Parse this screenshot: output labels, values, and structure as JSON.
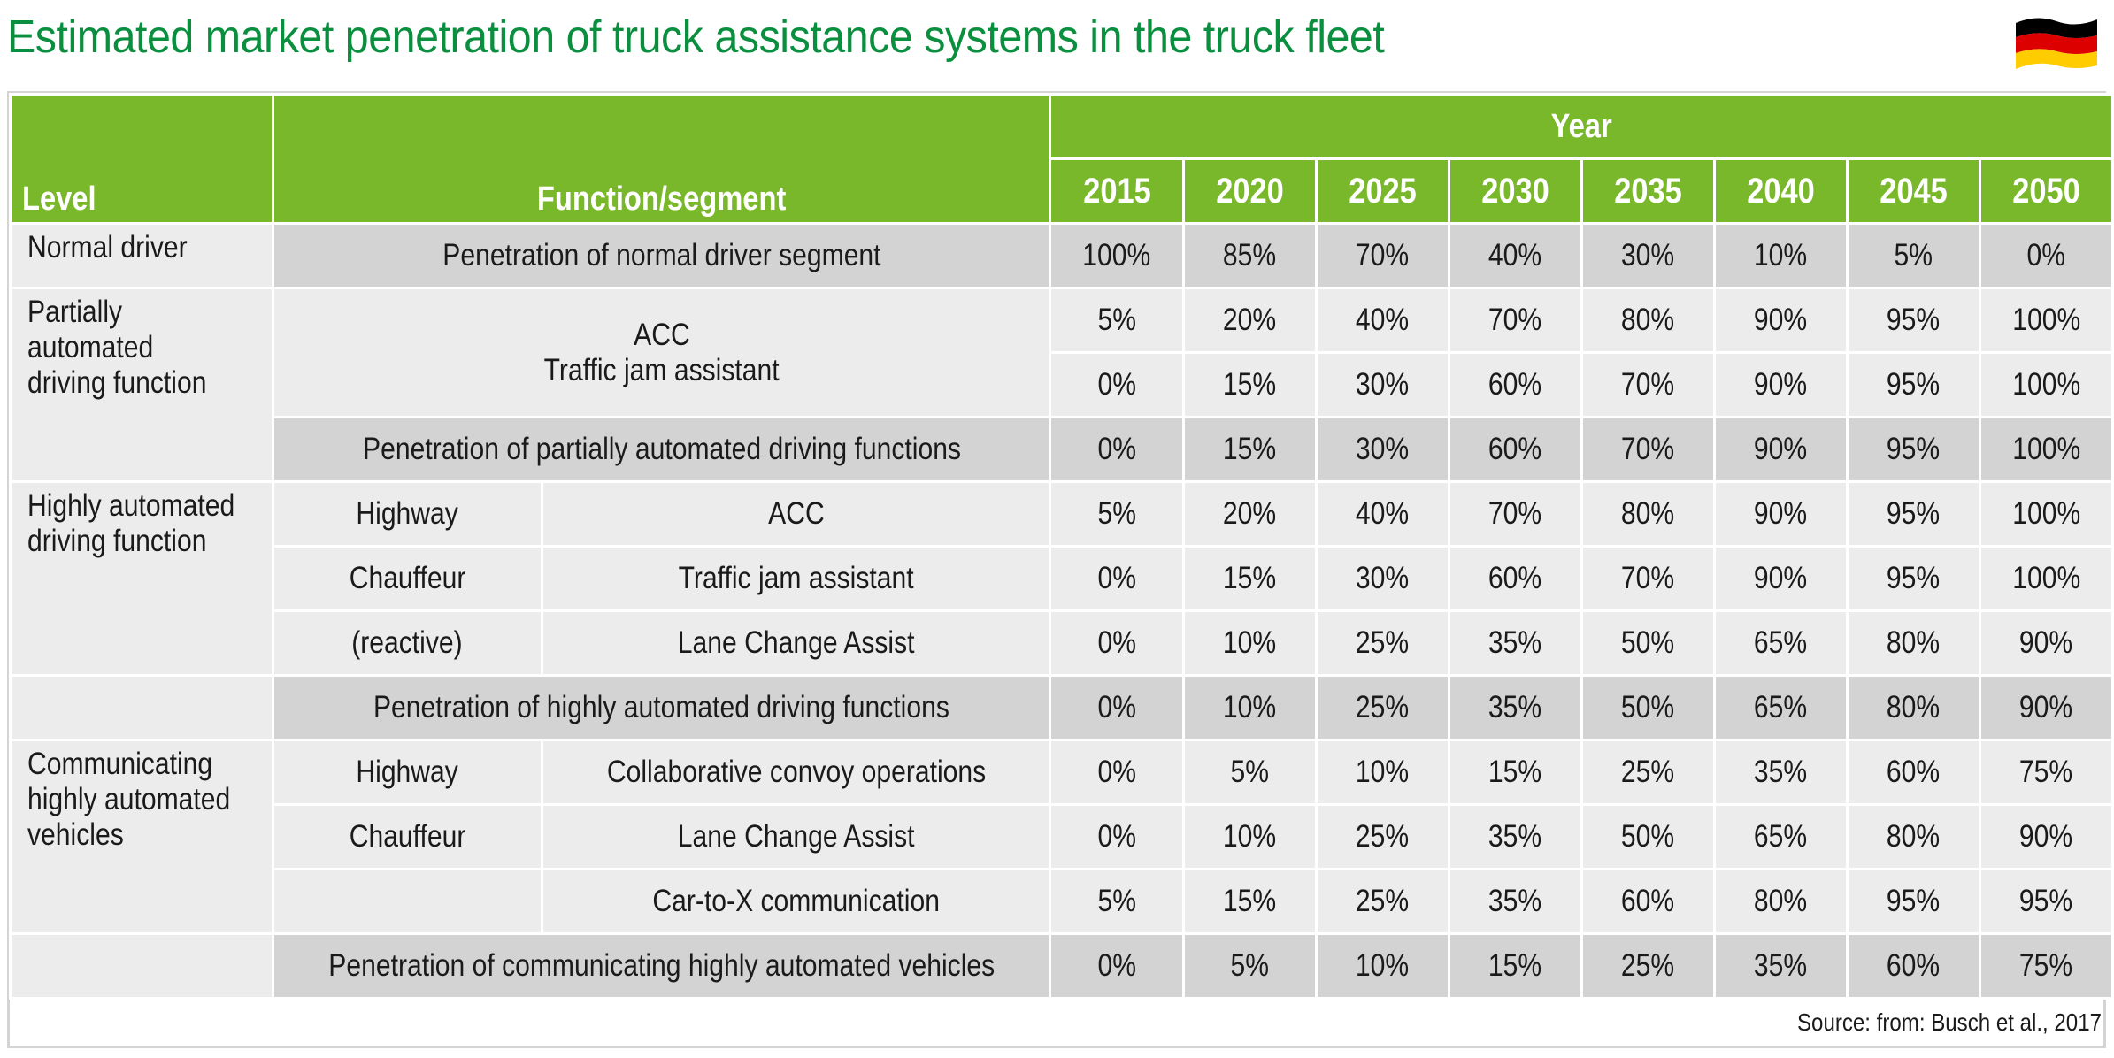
{
  "title": "Estimated market penetration of truck assistance systems in the truck fleet",
  "flag": {
    "icon": "germany-flag-icon",
    "colors": [
      "#000000",
      "#dd0000",
      "#ffcc00"
    ]
  },
  "header": {
    "level": "Level",
    "function": "Function/segment",
    "year": "Year",
    "years": [
      "2015",
      "2020",
      "2025",
      "2030",
      "2035",
      "2040",
      "2045",
      "2050"
    ]
  },
  "rows": {
    "normal": {
      "level": "Normal driver",
      "penetration": {
        "label": "Penetration of normal driver segment",
        "values": [
          "100%",
          "85%",
          "70%",
          "40%",
          "30%",
          "10%",
          "5%",
          "0%"
        ]
      }
    },
    "partial": {
      "level": "Partially automated driving function",
      "functions": [
        "ACC",
        "Traffic jam assistant"
      ],
      "values": [
        [
          "5%",
          "20%",
          "40%",
          "70%",
          "80%",
          "90%",
          "95%",
          "100%"
        ],
        [
          "0%",
          "15%",
          "30%",
          "60%",
          "70%",
          "90%",
          "95%",
          "100%"
        ]
      ],
      "penetration": {
        "label": "Penetration of partially automated driving functions",
        "values": [
          "0%",
          "15%",
          "30%",
          "60%",
          "70%",
          "90%",
          "95%",
          "100%"
        ]
      }
    },
    "highly": {
      "level": "Highly automated driving function",
      "segments": [
        "Highway",
        "Chauffeur",
        "(reactive)"
      ],
      "functions": [
        "ACC",
        "Traffic jam assistant",
        "Lane Change Assist"
      ],
      "values": [
        [
          "5%",
          "20%",
          "40%",
          "70%",
          "80%",
          "90%",
          "95%",
          "100%"
        ],
        [
          "0%",
          "15%",
          "30%",
          "60%",
          "70%",
          "90%",
          "95%",
          "100%"
        ],
        [
          "0%",
          "10%",
          "25%",
          "35%",
          "50%",
          "65%",
          "80%",
          "90%"
        ]
      ],
      "penetration": {
        "label": "Penetration of highly automated driving functions",
        "values": [
          "0%",
          "10%",
          "25%",
          "35%",
          "50%",
          "65%",
          "80%",
          "90%"
        ]
      }
    },
    "communicating": {
      "level": "Communicating highly automated vehicles",
      "segments": [
        "Highway",
        "Chauffeur",
        ""
      ],
      "functions": [
        "Collaborative convoy operations",
        "Lane Change Assist",
        "Car-to-X communication"
      ],
      "values": [
        [
          "0%",
          "5%",
          "10%",
          "15%",
          "25%",
          "35%",
          "60%",
          "75%"
        ],
        [
          "0%",
          "10%",
          "25%",
          "35%",
          "50%",
          "65%",
          "80%",
          "90%"
        ],
        [
          "5%",
          "15%",
          "25%",
          "35%",
          "60%",
          "80%",
          "95%",
          "95%"
        ]
      ],
      "penetration": {
        "label": "Penetration of communicating highly automated vehicles",
        "values": [
          "0%",
          "5%",
          "10%",
          "15%",
          "25%",
          "35%",
          "60%",
          "75%"
        ]
      }
    }
  },
  "source": "Source: from: Busch et al., 2017",
  "colors": {
    "title": "#0a8f3f",
    "header": "#79b82a",
    "light": "#ececec",
    "penetration": "#d3d3d3"
  }
}
